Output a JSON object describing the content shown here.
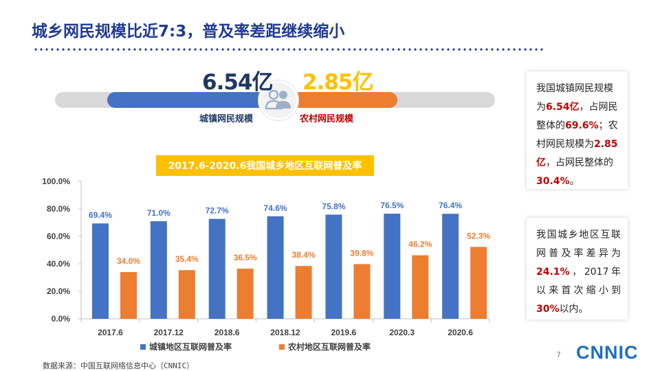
{
  "header": {
    "title": "城乡网民规模比近7:3，普及率差距继续缩小"
  },
  "comparison": {
    "urban_value": "6.54亿",
    "rural_value": "2.85亿",
    "urban_label": "城镇网民规模",
    "rural_label": "农村网民规模",
    "urban_color": "#4472c4",
    "rural_color": "#ed7d31",
    "icon": "people-icon"
  },
  "chart_data": {
    "type": "bar",
    "title": "2017.6-2020.6我国城乡地区互联网普及率",
    "categories": [
      "2017.6",
      "2017.12",
      "2018.6",
      "2018.12",
      "2019.6",
      "2020.3",
      "2020.6"
    ],
    "series": [
      {
        "name": "城镇地区互联网普及率",
        "values": [
          69.4,
          71.0,
          72.7,
          74.6,
          75.8,
          76.5,
          76.4
        ],
        "color": "#4472c4",
        "labels": [
          "69.4%",
          "71.0%",
          "72.7%",
          "74.6%",
          "75.8%",
          "76.5%",
          "76.4%"
        ]
      },
      {
        "name": "农村地区互联网普及率",
        "values": [
          34.0,
          35.4,
          36.5,
          38.4,
          39.8,
          46.2,
          52.3
        ],
        "color": "#ed7d31",
        "labels": [
          "34.0%",
          "35.4%",
          "36.5%",
          "38.4%",
          "39.8%",
          "46.2%",
          "52.3%"
        ]
      }
    ],
    "ylim": [
      0,
      100
    ],
    "yticks": [
      0,
      20,
      40,
      60,
      80,
      100
    ],
    "ytick_labels": [
      "0.0%",
      "20.0%",
      "40.0%",
      "60.0%",
      "80.0%",
      "100.0%"
    ],
    "xlabel": "",
    "ylabel": "",
    "grid": false,
    "legend": "bottom"
  },
  "info_box_1": {
    "t1": "我国城镇网民规模为",
    "v1": "6.54亿",
    "t2": "，占网民整体的",
    "v2": "69.6%",
    "t3": "；农村网民规模为",
    "v3": "2.85亿",
    "t4": "，占网民整体的",
    "v4": "30.4%",
    "t5": "。"
  },
  "info_box_2": {
    "t1": "我国城乡地区互联网普及率差异为",
    "v1": "24.1%",
    "t2": "，2017年以来首次缩小到",
    "v2": "30%",
    "t3": "以内。"
  },
  "footer": {
    "source": "数据来源：中国互联网络信息中心（CNNIC）",
    "page_number": "7",
    "logo_text": "CNNIC"
  }
}
